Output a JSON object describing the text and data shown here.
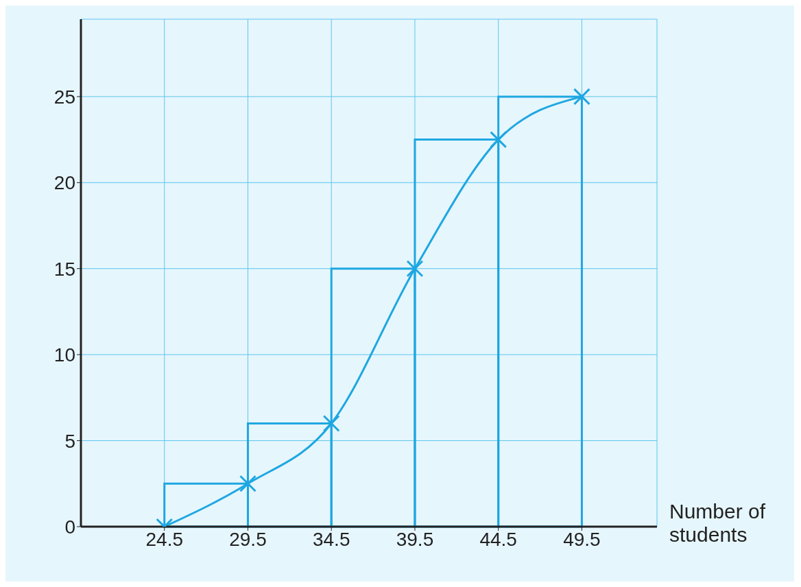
{
  "chart_data": {
    "type": "line",
    "xlabel": "Number of students",
    "xlim": [
      19.5,
      54
    ],
    "xticks": [
      24.5,
      29.5,
      34.5,
      39.5,
      44.5,
      49.5
    ],
    "ylim": [
      0,
      29.5
    ],
    "yticks": [
      0,
      5,
      10,
      15,
      20,
      25
    ],
    "grid": true,
    "series": [
      {
        "type": "histogram",
        "color": "#1ea7e1",
        "bins": [
          24.5,
          29.5,
          34.5,
          39.5,
          44.5,
          49.5
        ],
        "values": [
          2.5,
          6,
          15,
          22.5,
          25
        ]
      },
      {
        "type": "line",
        "color": "#1ea7e1",
        "marker": "cross",
        "x": [
          24.5,
          29.5,
          34.5,
          39.5,
          44.5,
          49.5
        ],
        "values": [
          0,
          2.5,
          6,
          15,
          22.5,
          25
        ]
      }
    ]
  }
}
